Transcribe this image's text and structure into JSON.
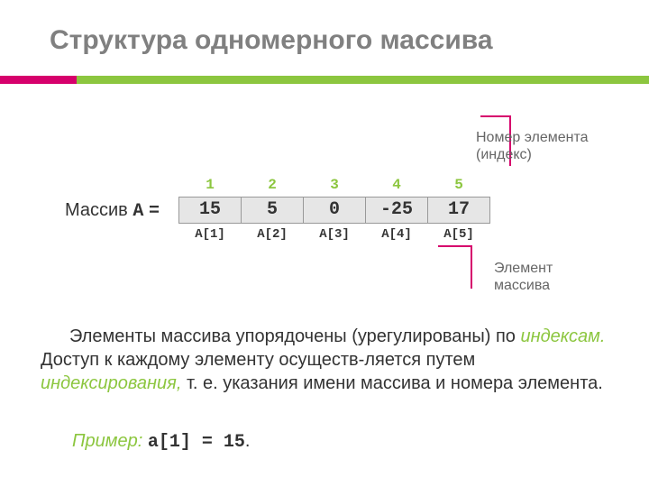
{
  "title": "Структура одномерного массива",
  "annotationIndex": {
    "line1": "Номер элемента",
    "line2": "(индекс)"
  },
  "annotationElement": {
    "line1": "Элемент",
    "line2": "массива"
  },
  "arrayLabel": {
    "word": "Массив",
    "name": "A",
    "eq": "="
  },
  "indices": [
    "1",
    "2",
    "3",
    "4",
    "5"
  ],
  "values": [
    "15",
    "5",
    "0",
    "-25",
    "17"
  ],
  "valueColors": [
    "#333333",
    "#333333",
    "#333333",
    "#333333",
    "#333333"
  ],
  "cellBg": "#e6e6e6",
  "cellBorder": "#999999",
  "accentGreen": "#8cc63f",
  "accentPink": "#d6006c",
  "sublabels": [
    "A[1]",
    "A[2]",
    "A[3]",
    "A[4]",
    "A[5]"
  ],
  "paragraph": {
    "seg1": "Элементы массива упорядочены (урегулированы) по ",
    "em1": "индексам.",
    "seg2": " Доступ к каждому элементу осуществ-ляется путем ",
    "em2": "индексирования,",
    "seg3": " т. е. указания имени массива и номера элемента."
  },
  "example": {
    "label": "Пример:",
    "code": "a[1] = 15",
    "after": "."
  }
}
